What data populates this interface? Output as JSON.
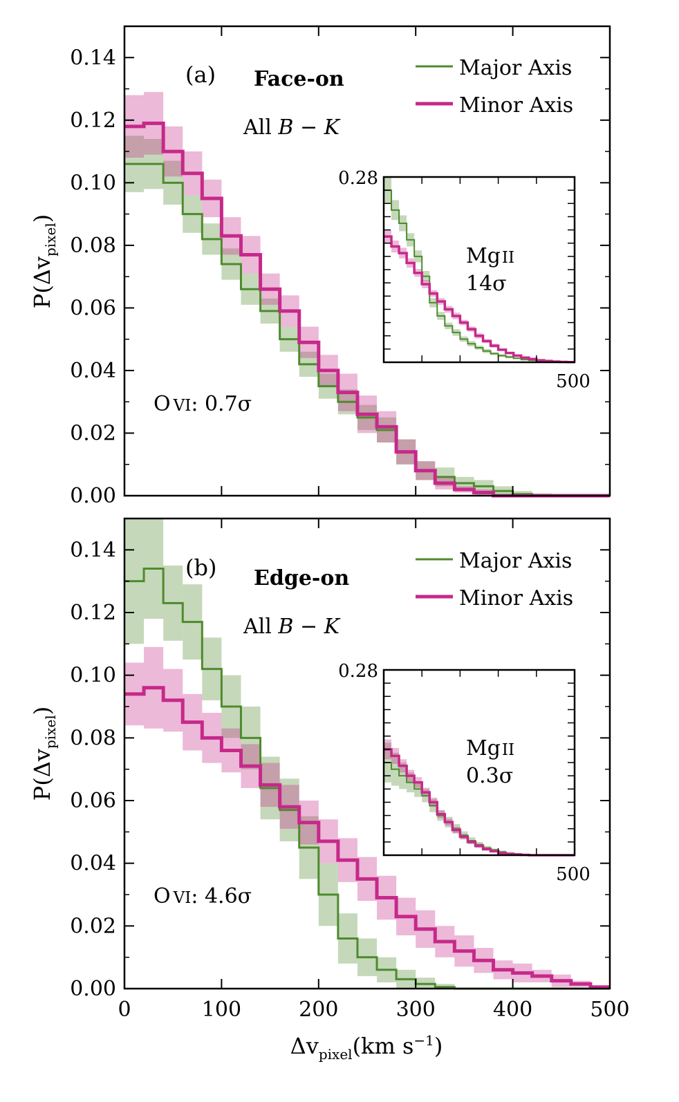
{
  "chart_data": {
    "type": "line",
    "xlabel": {
      "main": "Δv",
      "sub": "pixel",
      "unit": "(km s",
      "sup": "−1",
      "close": ")"
    },
    "ylabel": {
      "main": "P(Δv",
      "sub": "pixel",
      "close": ")"
    },
    "xlim": [
      0,
      500
    ],
    "x_ticks": [
      "0",
      "100",
      "200",
      "300",
      "400",
      "500"
    ],
    "ylim": [
      0,
      0.15
    ],
    "y_ticks": [
      "0.00",
      "0.02",
      "0.04",
      "0.06",
      "0.08",
      "0.10",
      "0.12",
      "0.14"
    ],
    "bin_edges": [
      0,
      20,
      40,
      60,
      80,
      100,
      120,
      140,
      160,
      180,
      200,
      220,
      240,
      260,
      280,
      300,
      320,
      340,
      360,
      380,
      400,
      420,
      440,
      460,
      480,
      500
    ],
    "panels": [
      {
        "id": "a",
        "label": "(a)",
        "title": "Face-on",
        "subtitle": {
          "prefix": "All ",
          "math": "B − K"
        },
        "stat": {
          "ion": "O",
          "ion_sc": "VI",
          "value": ": 0.7σ"
        },
        "legend": {
          "position": "top-right"
        },
        "series": [
          {
            "name": "Major Axis",
            "color": "#4e8a2e",
            "values": [
              0.106,
              0.106,
              0.1,
              0.09,
              0.082,
              0.074,
              0.066,
              0.059,
              0.05,
              0.042,
              0.035,
              0.03,
              0.025,
              0.021,
              0.014,
              0.008,
              0.006,
              0.004,
              0.003,
              0.0015,
              0.0005,
              0.0002,
              0,
              0,
              0
            ],
            "err": [
              0.009,
              0.008,
              0.007,
              0.006,
              0.005,
              0.005,
              0.005,
              0.004,
              0.004,
              0.004,
              0.004,
              0.004,
              0.004,
              0.004,
              0.004,
              0.003,
              0.003,
              0.002,
              0.002,
              0.0015,
              0.001,
              0.0005,
              0,
              0,
              0
            ]
          },
          {
            "name": "Minor Axis",
            "color": "#c6298a",
            "values": [
              0.118,
              0.119,
              0.11,
              0.103,
              0.095,
              0.083,
              0.077,
              0.066,
              0.059,
              0.049,
              0.04,
              0.033,
              0.026,
              0.022,
              0.014,
              0.008,
              0.004,
              0.002,
              0.001,
              0,
              0,
              0,
              0,
              0,
              0
            ],
            "err": [
              0.01,
              0.01,
              0.008,
              0.007,
              0.006,
              0.006,
              0.006,
              0.005,
              0.005,
              0.005,
              0.005,
              0.006,
              0.006,
              0.005,
              0.004,
              0.003,
              0.002,
              0.001,
              0.001,
              0,
              0,
              0,
              0,
              0,
              0
            ]
          }
        ],
        "inset": {
          "ylim": [
            0,
            0.28
          ],
          "y_tick_label": "0.28",
          "xlim": [
            0,
            500
          ],
          "x_tick_label": "500",
          "ion": "Mg",
          "ion_sc": "II",
          "stat": "14σ",
          "series": [
            {
              "name": "Major Axis",
              "color": "#4e8a2e",
              "values": [
                0.26,
                0.23,
                0.21,
                0.185,
                0.16,
                0.13,
                0.09,
                0.07,
                0.055,
                0.045,
                0.035,
                0.028,
                0.022,
                0.017,
                0.013,
                0.01,
                0.008,
                0.006,
                0.004,
                0.003,
                0.002,
                0.0015,
                0.001,
                0.0005,
                0.0002
              ],
              "err": [
                0.02,
                0.015,
                0.012,
                0.01,
                0.009,
                0.008,
                0.007,
                0.006,
                0.005,
                0.005,
                0.004,
                0.004,
                0.003,
                0.003,
                0.002,
                0.002,
                0.002,
                0.001,
                0.001,
                0.001,
                0.001,
                0.001,
                0.001,
                0,
                0
              ]
            },
            {
              "name": "Minor Axis",
              "color": "#c6298a",
              "values": [
                0.19,
                0.175,
                0.165,
                0.15,
                0.135,
                0.118,
                0.104,
                0.092,
                0.08,
                0.07,
                0.06,
                0.05,
                0.04,
                0.032,
                0.025,
                0.019,
                0.014,
                0.01,
                0.007,
                0.005,
                0.003,
                0.002,
                0.001,
                0.0005,
                0.0002
              ],
              "err": [
                0.01,
                0.009,
                0.008,
                0.007,
                0.006,
                0.006,
                0.005,
                0.005,
                0.005,
                0.005,
                0.004,
                0.004,
                0.004,
                0.003,
                0.003,
                0.002,
                0.002,
                0.002,
                0.001,
                0.001,
                0.001,
                0.001,
                0,
                0,
                0
              ]
            }
          ]
        }
      },
      {
        "id": "b",
        "label": "(b)",
        "title": "Edge-on",
        "subtitle": {
          "prefix": "All ",
          "math": "B − K"
        },
        "stat": {
          "ion": "O",
          "ion_sc": "VI",
          "value": ": 4.6σ"
        },
        "legend": {
          "position": "top-right"
        },
        "series": [
          {
            "name": "Major Axis",
            "color": "#4e8a2e",
            "values": [
              0.13,
              0.134,
              0.123,
              0.117,
              0.102,
              0.09,
              0.08,
              0.064,
              0.057,
              0.045,
              0.03,
              0.016,
              0.01,
              0.006,
              0.003,
              0.0015,
              0.0005,
              0,
              0,
              0,
              0,
              0,
              0,
              0,
              0
            ],
            "err": [
              0.02,
              0.016,
              0.012,
              0.012,
              0.01,
              0.01,
              0.01,
              0.01,
              0.01,
              0.01,
              0.01,
              0.008,
              0.006,
              0.004,
              0.003,
              0.002,
              0.001,
              0,
              0,
              0,
              0,
              0,
              0,
              0,
              0
            ],
            "note": "error band on first bin extends above the plotted range"
          },
          {
            "name": "Minor Axis",
            "color": "#c6298a",
            "values": [
              0.094,
              0.096,
              0.092,
              0.085,
              0.08,
              0.076,
              0.071,
              0.065,
              0.058,
              0.053,
              0.047,
              0.041,
              0.035,
              0.029,
              0.023,
              0.019,
              0.015,
              0.012,
              0.009,
              0.006,
              0.005,
              0.004,
              0.0025,
              0.0015,
              0.0005
            ],
            "err": [
              0.01,
              0.013,
              0.01,
              0.009,
              0.008,
              0.007,
              0.007,
              0.007,
              0.007,
              0.007,
              0.007,
              0.007,
              0.007,
              0.007,
              0.006,
              0.006,
              0.005,
              0.005,
              0.004,
              0.003,
              0.003,
              0.002,
              0.002,
              0.001,
              0.0005
            ]
          }
        ],
        "inset": {
          "ylim": [
            0,
            0.28
          ],
          "y_tick_label": "0.28",
          "xlim": [
            0,
            500
          ],
          "x_tick_label": "500",
          "ion": "Mg",
          "ion_sc": "II",
          "stat": "0.3σ",
          "series": [
            {
              "name": "Major Axis",
              "color": "#4e8a2e",
              "values": [
                0.14,
                0.13,
                0.12,
                0.11,
                0.1,
                0.09,
                0.075,
                0.06,
                0.05,
                0.04,
                0.03,
                0.022,
                0.016,
                0.011,
                0.008,
                0.005,
                0.003,
                0.002,
                0.001,
                0.0005,
                0,
                0,
                0,
                0,
                0
              ],
              "err": [
                0.03,
                0.025,
                0.02,
                0.015,
                0.012,
                0.01,
                0.01,
                0.008,
                0.008,
                0.007,
                0.006,
                0.005,
                0.004,
                0.003,
                0.002,
                0.002,
                0.001,
                0.001,
                0.001,
                0,
                0,
                0,
                0,
                0,
                0
              ]
            },
            {
              "name": "Minor Axis",
              "color": "#c6298a",
              "values": [
                0.16,
                0.15,
                0.135,
                0.12,
                0.11,
                0.095,
                0.08,
                0.062,
                0.05,
                0.038,
                0.028,
                0.02,
                0.014,
                0.009,
                0.006,
                0.003,
                0.002,
                0.001,
                0.0005,
                0,
                0,
                0,
                0,
                0,
                0
              ],
              "err": [
                0.015,
                0.012,
                0.01,
                0.009,
                0.008,
                0.007,
                0.007,
                0.006,
                0.005,
                0.005,
                0.004,
                0.003,
                0.003,
                0.002,
                0.002,
                0.001,
                0.001,
                0.001,
                0,
                0,
                0,
                0,
                0,
                0,
                0
              ]
            }
          ]
        }
      }
    ]
  }
}
